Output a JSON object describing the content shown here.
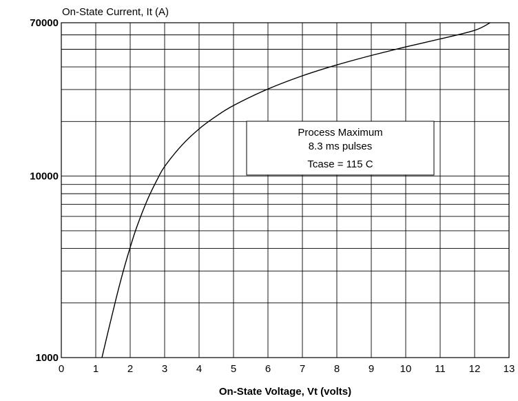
{
  "chart_data": {
    "type": "line",
    "title": "On-State Current, It (A)",
    "xlabel": "On-State Voltage, Vt (volts)",
    "ylabel": "",
    "xlim": [
      0,
      13
    ],
    "ylim": [
      1000,
      70000
    ],
    "yscale": "log",
    "grid": true,
    "x_ticks": [
      "0",
      "1",
      "2",
      "3",
      "4",
      "5",
      "6",
      "7",
      "8",
      "9",
      "10",
      "11",
      "12",
      "13"
    ],
    "y_ticks": [
      {
        "value": 1000,
        "label": "1000"
      },
      {
        "value": 10000,
        "label": "10000"
      },
      {
        "value": 70000,
        "label": "70000"
      }
    ],
    "annotation": [
      "Process Maximum",
      "8.3 ms pulses",
      "Tcase = 115 C"
    ],
    "series": [
      {
        "x": [
          1.18,
          1.4,
          1.6,
          1.8,
          2.0,
          2.2,
          2.5,
          2.8,
          3.0,
          3.5,
          4.0,
          4.5,
          5.0,
          6.0,
          7.0,
          8.0,
          9.0,
          10.0,
          11.0,
          12.0,
          12.45
        ],
        "y": [
          1000,
          1500,
          2150,
          3000,
          4050,
          5300,
          7400,
          9700,
          11300,
          14800,
          18200,
          21400,
          24500,
          30200,
          35700,
          41000,
          46200,
          51500,
          57000,
          63500,
          70000
        ]
      }
    ]
  }
}
